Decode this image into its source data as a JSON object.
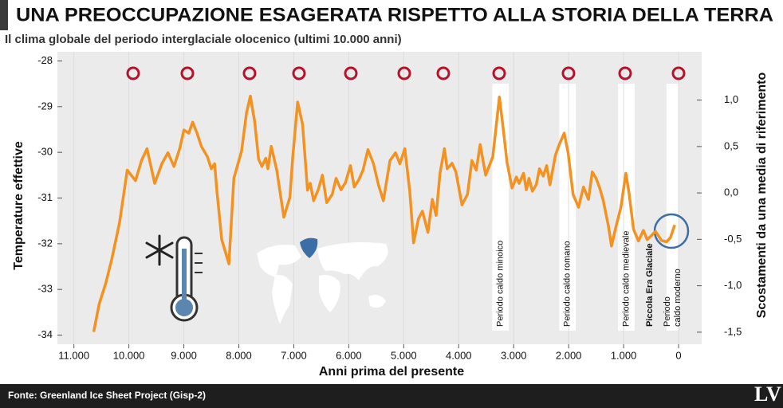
{
  "chart_data": {
    "type": "line",
    "title": "UNA PREOCCUPAZIONE ESAGERATA RISPETTO ALLA STORIA DELLA TERRA",
    "subtitle": "Il clima globale del periodo interglaciale olocenico (ultimi 10.000 anni)",
    "x_label": "Anni prima del presente",
    "y_label": "Temperature effettive",
    "y2_label": "Scostamenti da una media di riferimento",
    "source": "Fonte: Greenland Ice Sheet Project (Gisp-2)",
    "logo": "LV",
    "color": "#f39221",
    "grid": true,
    "xlim": [
      11300,
      -420
    ],
    "xticks": [
      {
        "value": 11000,
        "label": "11.000"
      },
      {
        "value": 10000,
        "label": "10.000"
      },
      {
        "value": 9000,
        "label": "9.000"
      },
      {
        "value": 8000,
        "label": "8.000"
      },
      {
        "value": 7000,
        "label": "7.000"
      },
      {
        "value": 6000,
        "label": "6.000"
      },
      {
        "value": 5000,
        "label": "5.000"
      },
      {
        "value": 4000,
        "label": "4.000"
      },
      {
        "value": 3000,
        "label": "3.000"
      },
      {
        "value": 2000,
        "label": "2.000"
      },
      {
        "value": 1000,
        "label": "1.000"
      },
      0
    ],
    "ylim": [
      -34.2,
      -27.8
    ],
    "yticks": [
      -28,
      -29,
      -30,
      -31,
      -32,
      -33,
      -34
    ],
    "y2lim": [
      -1.63,
      1.52
    ],
    "y2ticks": [
      {
        "value": 1.0,
        "label": "1,0"
      },
      {
        "value": 0.5,
        "label": "0,5"
      },
      {
        "value": 0.0,
        "label": "0,0"
      },
      {
        "value": -0.5,
        "label": "-0,5"
      },
      {
        "value": -1.0,
        "label": "-1,0"
      },
      {
        "value": -1.5,
        "label": "-1,5"
      }
    ],
    "x": [
      10640,
      10540,
      10420,
      10310,
      10170,
      10030,
      9880,
      9770,
      9670,
      9530,
      9400,
      9290,
      9180,
      9070,
      9000,
      8910,
      8840,
      8760,
      8680,
      8570,
      8500,
      8440,
      8400,
      8310,
      8180,
      8090,
      7950,
      7860,
      7790,
      7710,
      7640,
      7580,
      7510,
      7470,
      7410,
      7310,
      7180,
      7070,
      7020,
      6930,
      6840,
      6750,
      6700,
      6640,
      6550,
      6480,
      6400,
      6300,
      6230,
      6140,
      6060,
      5970,
      5900,
      5820,
      5740,
      5650,
      5550,
      5460,
      5370,
      5250,
      5150,
      5070,
      4980,
      4890,
      4820,
      4730,
      4660,
      4560,
      4480,
      4410,
      4340,
      4260,
      4210,
      4120,
      4050,
      3940,
      3840,
      3760,
      3680,
      3610,
      3510,
      3380,
      3260,
      3190,
      3120,
      3030,
      2950,
      2900,
      2820,
      2770,
      2720,
      2660,
      2590,
      2530,
      2460,
      2400,
      2340,
      2240,
      2170,
      2080,
      2010,
      1920,
      1820,
      1730,
      1640,
      1570,
      1500,
      1430,
      1370,
      1280,
      1220,
      1140,
      1050,
      960,
      900,
      820,
      730,
      640,
      570,
      510,
      420,
      310,
      220,
      150,
      70
    ],
    "values": [
      -33.93,
      -33.32,
      -32.86,
      -32.33,
      -31.54,
      -30.39,
      -30.62,
      -30.18,
      -29.92,
      -30.68,
      -30.25,
      -30.01,
      -30.31,
      -29.9,
      -29.51,
      -29.58,
      -29.34,
      -29.58,
      -29.87,
      -30.1,
      -30.36,
      -30.25,
      -30.82,
      -31.91,
      -32.44,
      -30.57,
      -29.97,
      -29.13,
      -28.77,
      -29.34,
      -30.15,
      -30.31,
      -30.13,
      -30.36,
      -29.87,
      -30.39,
      -31.42,
      -30.98,
      -30.11,
      -28.9,
      -29.39,
      -30.83,
      -30.68,
      -31.06,
      -30.8,
      -30.5,
      -31.1,
      -30.92,
      -30.57,
      -30.82,
      -30.66,
      -30.29,
      -30.76,
      -30.61,
      -30.39,
      -29.94,
      -30.25,
      -30.71,
      -31.06,
      -30.18,
      -30.01,
      -30.25,
      -29.92,
      -30.85,
      -31.98,
      -31.45,
      -31.29,
      -31.75,
      -31.03,
      -31.38,
      -30.46,
      -29.92,
      -30.36,
      -30.24,
      -30.43,
      -31.15,
      -30.92,
      -30.18,
      -30.39,
      -29.83,
      -30.5,
      -30.1,
      -28.79,
      -29.48,
      -30.22,
      -30.78,
      -30.54,
      -30.68,
      -30.46,
      -30.82,
      -30.57,
      -30.85,
      -30.71,
      -30.36,
      -30.52,
      -30.29,
      -30.71,
      -30.06,
      -29.83,
      -29.58,
      -30.01,
      -30.92,
      -31.2,
      -30.76,
      -31.03,
      -30.43,
      -30.57,
      -30.8,
      -31.06,
      -31.59,
      -32.05,
      -31.63,
      -31.2,
      -30.46,
      -30.9,
      -31.68,
      -31.94,
      -31.71,
      -31.91,
      -31.84,
      -31.73,
      -31.93,
      -31.96,
      -31.87,
      -31.59
    ],
    "periods": [
      {
        "lines": [
          "Periodo caldo minoico"
        ],
        "from": 3390,
        "to": 3090
      },
      {
        "lines": [
          "Periodo caldo romano"
        ],
        "from": 2170,
        "to": 1870
      },
      {
        "lines": [
          "Periodo caldo medievale"
        ],
        "from": 1100,
        "to": 800
      },
      {
        "lines": [
          "Piccola Era Glaciale"
        ],
        "bold": true
      },
      {
        "lines": [
          "Periodo",
          "caldo moderno"
        ],
        "from": 220,
        "to": 0
      }
    ]
  }
}
